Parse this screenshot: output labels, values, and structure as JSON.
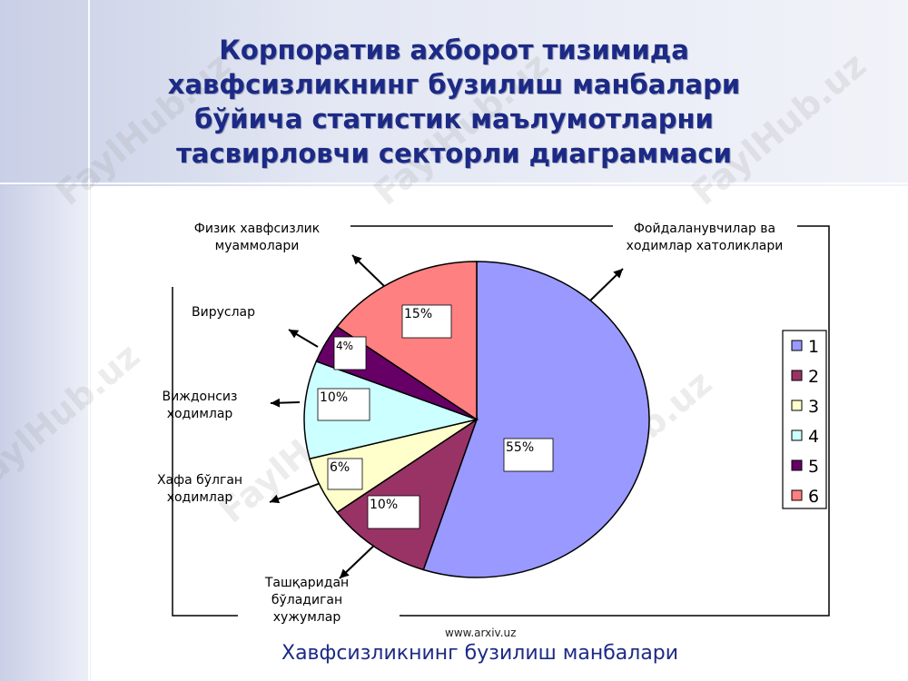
{
  "page": {
    "title": "Корпоратив ахборот тизимида хавфсизликнинг бузилиш манбалари бўйича статистик маълумотларни тасвирловчи секторли диаграммаси",
    "watermark": "FaylHub.uz",
    "source": "www.arxiv.uz",
    "caption": "Хавфсизликнинг бузилиш манбалари"
  },
  "chart_data": {
    "type": "pie",
    "title": "",
    "categories": [
      "1",
      "2",
      "3",
      "4",
      "5",
      "6"
    ],
    "values": [
      55,
      10,
      6,
      10,
      4,
      15
    ],
    "data_labels": [
      "55%",
      "10%",
      "6%",
      "10%",
      "4%",
      "15%"
    ],
    "category_descriptions": [
      "Фойдаланувчилар ва ходимлар хатоликлари",
      "Ташқаридан бўладиган хужумлар",
      "Хафа бўлган ходимлар",
      "Виждонсиз ходимлар",
      "Вируслар",
      "Физик хавфсизлик муаммолари"
    ],
    "colors": [
      "#9999ff",
      "#993366",
      "#ffffcc",
      "#ccffff",
      "#660066",
      "#ff8080"
    ],
    "legend": {
      "entries": [
        "1",
        "2",
        "3",
        "4",
        "5",
        "6"
      ],
      "placement": "right"
    }
  }
}
